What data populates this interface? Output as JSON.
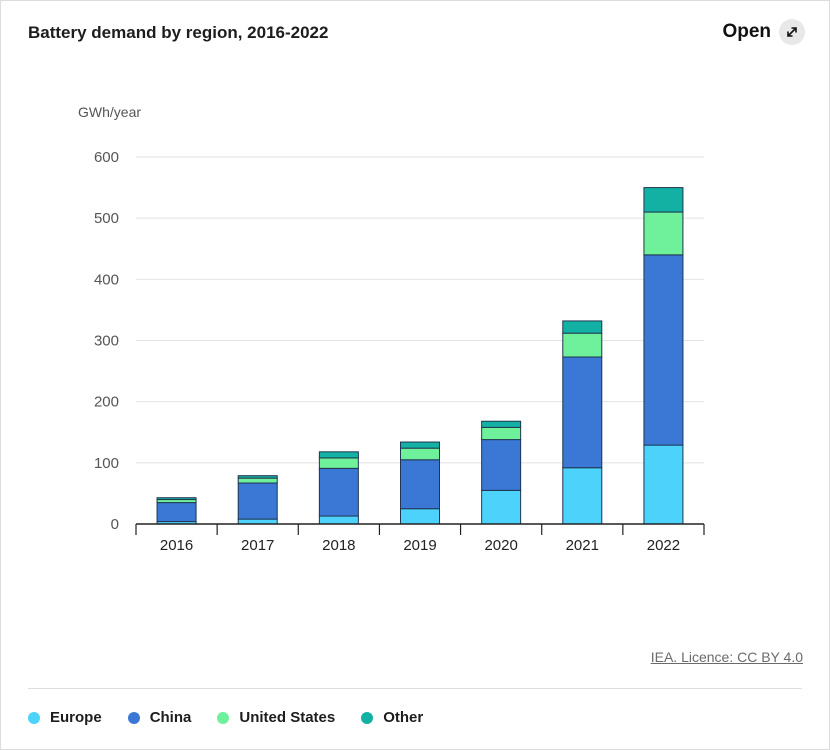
{
  "header": {
    "title": "Battery demand by region, 2016-2022",
    "open_label": "Open",
    "open_icon": "expand-arrow-icon"
  },
  "footer": {
    "source_label": "IEA. Licence: CC BY 4.0"
  },
  "colors": {
    "Europe": "#4dd3fb",
    "China": "#3b78d6",
    "United States": "#6ff09a",
    "Other": "#13b1a4"
  },
  "chart_data": {
    "type": "bar",
    "stacked": true,
    "title": "Battery demand by region, 2016-2022",
    "ylabel": "GWh/year",
    "xlabel": "",
    "ylim": [
      0,
      600
    ],
    "yticks": [
      0,
      100,
      200,
      300,
      400,
      500,
      600
    ],
    "grid": true,
    "legend_position": "bottom",
    "categories": [
      "2016",
      "2017",
      "2018",
      "2019",
      "2020",
      "2021",
      "2022"
    ],
    "series": [
      {
        "name": "Europe",
        "values": [
          4,
          8,
          13,
          25,
          55,
          92,
          129
        ]
      },
      {
        "name": "China",
        "values": [
          31,
          59,
          78,
          80,
          83,
          181,
          311
        ]
      },
      {
        "name": "United States",
        "values": [
          5,
          8,
          17,
          19,
          20,
          39,
          70
        ]
      },
      {
        "name": "Other",
        "values": [
          3,
          4,
          10,
          10,
          10,
          20,
          40
        ]
      }
    ]
  }
}
